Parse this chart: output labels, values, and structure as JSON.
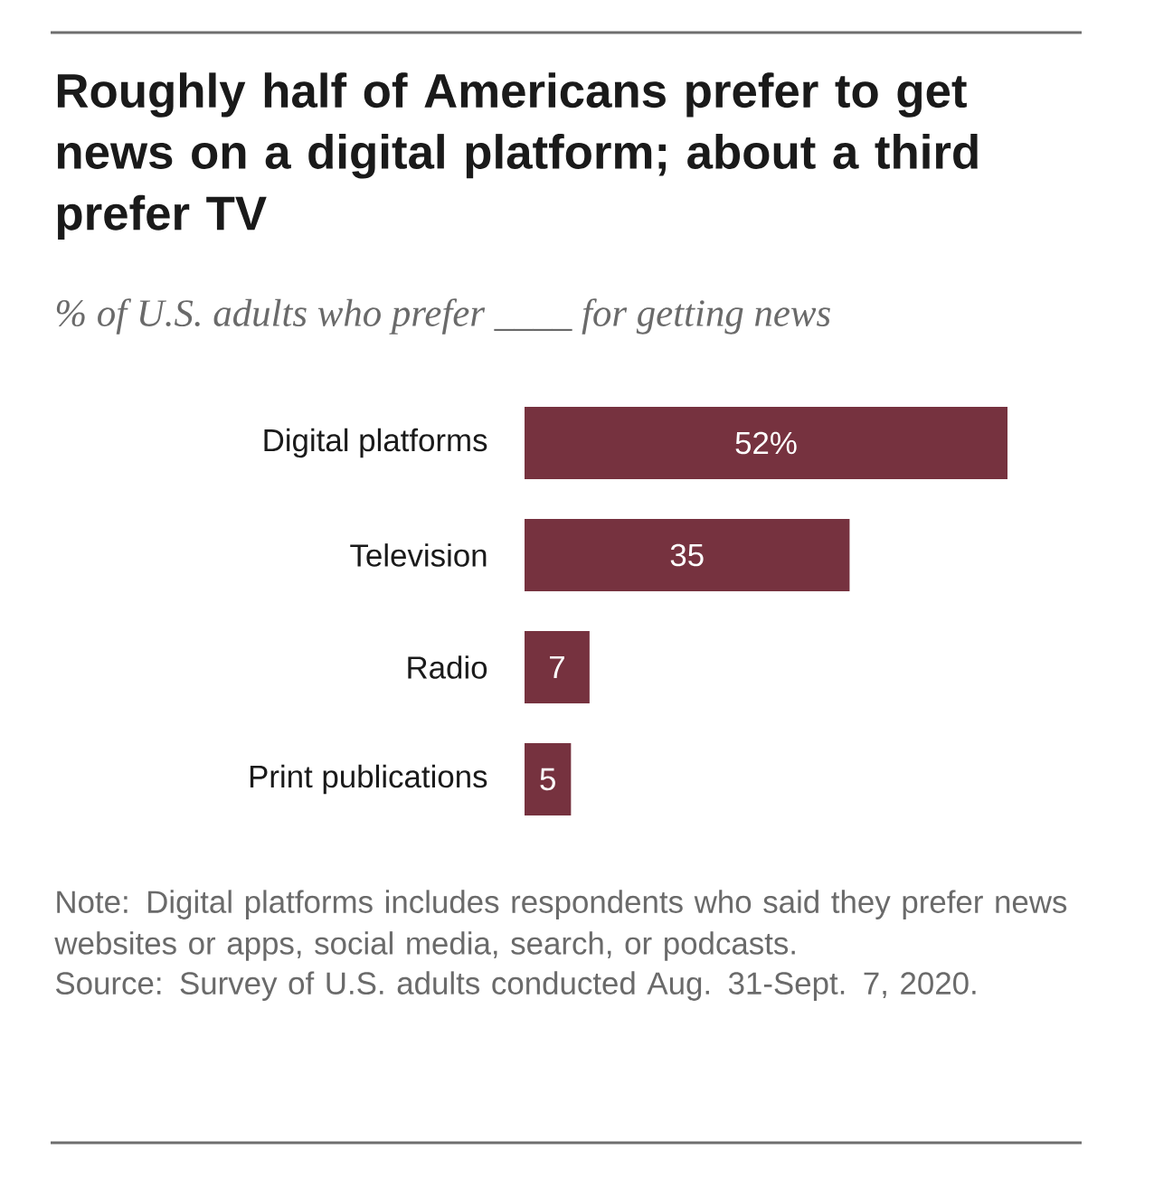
{
  "chart_data": {
    "type": "bar",
    "orientation": "horizontal",
    "title": "Roughly half of Americans prefer to get news on a digital platform; about a third prefer TV",
    "subtitle": "% of U.S. adults who prefer ____ for getting news",
    "categories": [
      "Digital platforms",
      "Television",
      "Radio",
      "Print publications"
    ],
    "values": [
      52,
      35,
      7,
      5
    ],
    "value_labels": [
      "52%",
      "35",
      "7",
      "5"
    ],
    "color": "#76323f",
    "annotations": [
      "Note: Digital platforms includes respondents who said they prefer news websites or apps, social media, search, or podcasts.",
      "Source: Survey of U.S. adults conducted Aug. 31-Sept. 7, 2020."
    ]
  }
}
